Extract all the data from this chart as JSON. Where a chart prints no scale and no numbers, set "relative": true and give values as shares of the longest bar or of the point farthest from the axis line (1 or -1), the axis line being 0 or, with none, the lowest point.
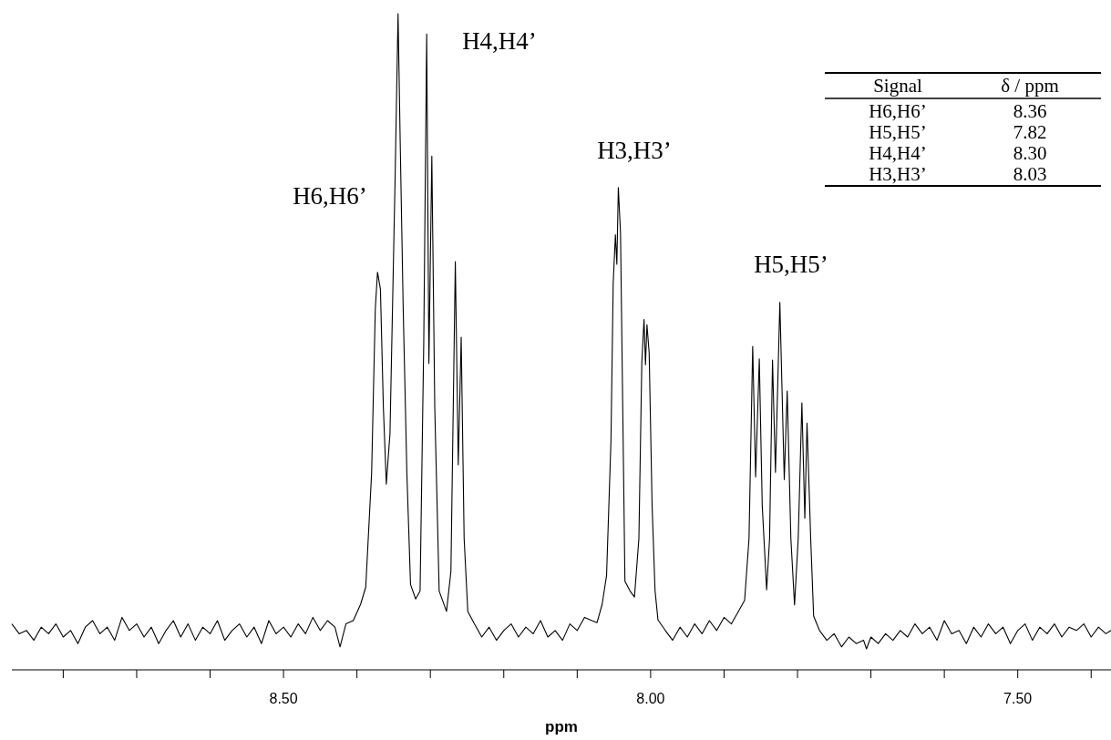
{
  "chart_data": {
    "type": "line",
    "xlabel": "ppm",
    "relative": true,
    "xlim": [
      8.87,
      7.373
    ],
    "xticks": [
      {
        "value": 8.8,
        "label": null
      },
      {
        "value": 8.7,
        "label": null
      },
      {
        "value": 8.6,
        "label": null
      },
      {
        "value": 8.5,
        "label": "8.50"
      },
      {
        "value": 8.4,
        "label": null
      },
      {
        "value": 8.3,
        "label": null
      },
      {
        "value": 8.2,
        "label": null
      },
      {
        "value": 8.1,
        "label": null
      },
      {
        "value": 8.0,
        "label": "8.00"
      },
      {
        "value": 7.9,
        "label": null
      },
      {
        "value": 7.8,
        "label": null
      },
      {
        "value": 7.7,
        "label": null
      },
      {
        "value": 7.6,
        "label": null
      },
      {
        "value": 7.5,
        "label": "7.50"
      },
      {
        "value": 7.4,
        "label": null
      }
    ],
    "grid": false,
    "line_style": "solid",
    "annotations": [
      "H6,H6’",
      "H4,H4’",
      "H3,H3’",
      "H5,H5’",
      "Signal",
      "δ / ppm",
      "H6,H6’",
      "8.36",
      "H5,H5’",
      "7.82",
      "H4,H4’",
      "8.30",
      "H3,H3’",
      "8.03"
    ],
    "series": [
      {
        "color": "#000000",
        "x": [
          8.87,
          8.86,
          8.85,
          8.84,
          8.83,
          8.82,
          8.81,
          8.8,
          8.79,
          8.78,
          8.77,
          8.76,
          8.75,
          8.74,
          8.73,
          8.72,
          8.71,
          8.7,
          8.69,
          8.68,
          8.67,
          8.66,
          8.65,
          8.64,
          8.63,
          8.62,
          8.61,
          8.6,
          8.59,
          8.58,
          8.57,
          8.56,
          8.55,
          8.54,
          8.53,
          8.52,
          8.51,
          8.5,
          8.49,
          8.48,
          8.47,
          8.46,
          8.45,
          8.44,
          8.43,
          8.423,
          8.415,
          8.405,
          8.395,
          8.388,
          8.38,
          8.375,
          8.372,
          8.368,
          8.364,
          8.36,
          8.355,
          8.348,
          8.344,
          8.341,
          8.337,
          8.332,
          8.327,
          8.32,
          8.314,
          8.309,
          8.305,
          8.302,
          8.298,
          8.294,
          8.288,
          8.278,
          8.272,
          8.266,
          8.262,
          8.258,
          8.254,
          8.249,
          8.24,
          8.23,
          8.22,
          8.21,
          8.2,
          8.19,
          8.18,
          8.17,
          8.16,
          8.15,
          8.14,
          8.13,
          8.12,
          8.11,
          8.1,
          8.09,
          8.08,
          8.073,
          8.066,
          8.06,
          8.054,
          8.051,
          8.048,
          8.046,
          8.044,
          8.041,
          8.038,
          8.035,
          8.028,
          8.022,
          8.016,
          8.012,
          8.009,
          8.007,
          8.005,
          8.002,
          7.998,
          7.994,
          7.99,
          7.98,
          7.97,
          7.96,
          7.95,
          7.94,
          7.93,
          7.92,
          7.91,
          7.9,
          7.89,
          7.88,
          7.872,
          7.866,
          7.861,
          7.857,
          7.852,
          7.848,
          7.842,
          7.838,
          7.834,
          7.83,
          7.824,
          7.818,
          7.814,
          7.809,
          7.804,
          7.799,
          7.794,
          7.79,
          7.787,
          7.782,
          7.778,
          7.77,
          7.76,
          7.75,
          7.74,
          7.73,
          7.72,
          7.71,
          7.706,
          7.7,
          7.69,
          7.68,
          7.67,
          7.66,
          7.65,
          7.64,
          7.63,
          7.62,
          7.61,
          7.6,
          7.59,
          7.58,
          7.57,
          7.56,
          7.55,
          7.54,
          7.53,
          7.52,
          7.51,
          7.5,
          7.49,
          7.48,
          7.47,
          7.46,
          7.45,
          7.44,
          7.43,
          7.42,
          7.41,
          7.4,
          7.39,
          7.38,
          7.373
        ],
        "values": [
          0.07,
          0.055,
          0.06,
          0.045,
          0.065,
          0.055,
          0.07,
          0.05,
          0.06,
          0.04,
          0.065,
          0.075,
          0.055,
          0.065,
          0.045,
          0.08,
          0.06,
          0.07,
          0.05,
          0.065,
          0.04,
          0.06,
          0.075,
          0.05,
          0.07,
          0.045,
          0.065,
          0.055,
          0.075,
          0.045,
          0.06,
          0.07,
          0.05,
          0.065,
          0.04,
          0.075,
          0.055,
          0.065,
          0.05,
          0.07,
          0.055,
          0.08,
          0.06,
          0.075,
          0.065,
          0.035,
          0.07,
          0.075,
          0.1,
          0.126,
          0.3,
          0.55,
          0.606,
          0.58,
          0.4,
          0.283,
          0.36,
          0.75,
          1.0,
          0.8,
          0.551,
          0.3,
          0.13,
          0.108,
          0.12,
          0.5,
          0.969,
          0.467,
          0.783,
          0.4,
          0.12,
          0.089,
          0.15,
          0.622,
          0.3125,
          0.507,
          0.2,
          0.089,
          0.07,
          0.05,
          0.065,
          0.045,
          0.06,
          0.07,
          0.05,
          0.065,
          0.055,
          0.075,
          0.05,
          0.06,
          0.045,
          0.07,
          0.06,
          0.08,
          0.075,
          0.072,
          0.1,
          0.144,
          0.35,
          0.589,
          0.663,
          0.618,
          0.735,
          0.665,
          0.4,
          0.135,
          0.12,
          0.111,
          0.2,
          0.469,
          0.534,
          0.465,
          0.526,
          0.483,
          0.25,
          0.121,
          0.076,
          0.06,
          0.045,
          0.065,
          0.05,
          0.07,
          0.055,
          0.075,
          0.06,
          0.08,
          0.07,
          0.09,
          0.106,
          0.2,
          0.493,
          0.294,
          0.474,
          0.25,
          0.122,
          0.2,
          0.472,
          0.301,
          0.56,
          0.29,
          0.425,
          0.2,
          0.099,
          0.2,
          0.407,
          0.231,
          0.376,
          0.2,
          0.082,
          0.06,
          0.045,
          0.055,
          0.035,
          0.05,
          0.04,
          0.045,
          0.032,
          0.05,
          0.04,
          0.055,
          0.045,
          0.06,
          0.05,
          0.07,
          0.055,
          0.065,
          0.045,
          0.075,
          0.055,
          0.06,
          0.04,
          0.065,
          0.05,
          0.07,
          0.055,
          0.065,
          0.04,
          0.06,
          0.07,
          0.045,
          0.065,
          0.055,
          0.07,
          0.05,
          0.065,
          0.06,
          0.07,
          0.05,
          0.065,
          0.055,
          0.06
        ]
      }
    ]
  }
}
